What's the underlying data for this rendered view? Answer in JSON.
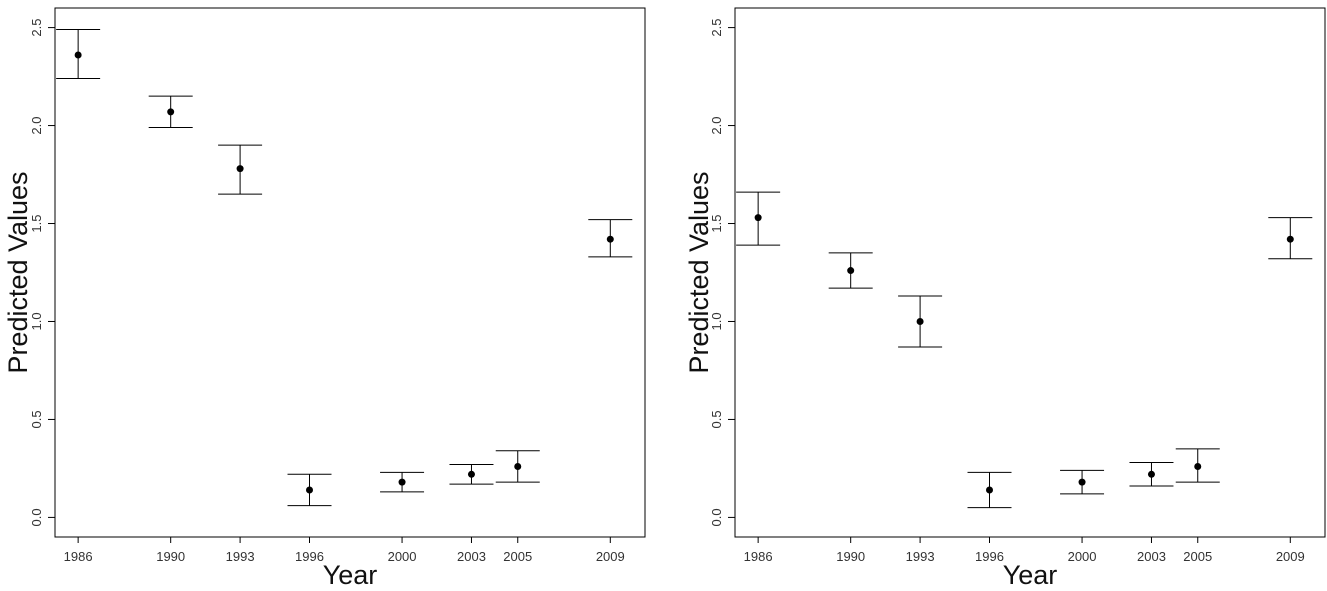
{
  "chart_data": [
    {
      "type": "scatter",
      "subtype": "point-with-error-bars",
      "xlabel": "Year",
      "ylabel": "Predicted Values",
      "ylim": [
        -0.1,
        2.6
      ],
      "yticks": [
        0.0,
        0.5,
        1.0,
        1.5,
        2.0,
        2.5
      ],
      "ytick_labels": [
        "0.0",
        "0.5",
        "1.0",
        "1.5",
        "2.0",
        "2.5"
      ],
      "x": [
        1986,
        1990,
        1993,
        1996,
        2000,
        2003,
        2005,
        2009
      ],
      "xtick_labels": [
        "1986",
        "1990",
        "1993",
        "1996",
        "2000",
        "2003",
        "2005",
        "2009"
      ],
      "xlim": [
        1985,
        2010.5
      ],
      "y": [
        2.36,
        2.07,
        1.78,
        0.14,
        0.18,
        0.22,
        0.26,
        1.42
      ],
      "lower": [
        2.24,
        1.99,
        1.65,
        0.06,
        0.13,
        0.17,
        0.18,
        1.33
      ],
      "upper": [
        2.49,
        2.15,
        1.9,
        0.22,
        0.23,
        0.27,
        0.34,
        1.52
      ],
      "grid": false,
      "point_color": "#000000"
    },
    {
      "type": "scatter",
      "subtype": "point-with-error-bars",
      "xlabel": "Year",
      "ylabel": "Predicted Values",
      "ylim": [
        -0.1,
        2.6
      ],
      "yticks": [
        0.0,
        0.5,
        1.0,
        1.5,
        2.0,
        2.5
      ],
      "ytick_labels": [
        "0.0",
        "0.5",
        "1.0",
        "1.5",
        "2.0",
        "2.5"
      ],
      "x": [
        1986,
        1990,
        1993,
        1996,
        2000,
        2003,
        2005,
        2009
      ],
      "xtick_labels": [
        "1986",
        "1990",
        "1993",
        "1996",
        "2000",
        "2003",
        "2005",
        "2009"
      ],
      "xlim": [
        1985,
        2010.5
      ],
      "y": [
        1.53,
        1.26,
        1.0,
        0.14,
        0.18,
        0.22,
        0.26,
        1.42
      ],
      "lower": [
        1.39,
        1.17,
        0.87,
        0.05,
        0.12,
        0.16,
        0.18,
        1.32
      ],
      "upper": [
        1.66,
        1.35,
        1.13,
        0.23,
        0.24,
        0.28,
        0.35,
        1.53
      ],
      "grid": false,
      "point_color": "#000000"
    }
  ]
}
